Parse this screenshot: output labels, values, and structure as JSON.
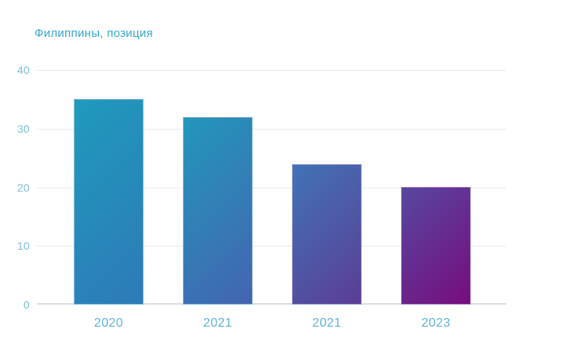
{
  "chart_data": {
    "type": "bar",
    "title": "Филиппины, позиция",
    "categories": [
      "2020",
      "2021",
      "2021",
      "2023"
    ],
    "values": [
      35,
      32,
      24,
      20
    ],
    "xlabel": "",
    "ylabel": "",
    "ylim": [
      0,
      40
    ],
    "yticks": [
      0,
      10,
      20,
      30,
      40
    ],
    "grid": "horizontal-only",
    "legend": "none",
    "bar_gradients": [
      [
        "#1f9abc",
        "#2e7ab8"
      ],
      [
        "#2297bb",
        "#4464b1"
      ],
      [
        "#4173b6",
        "#5b3d96"
      ],
      [
        "#5747a0",
        "#770d7d"
      ]
    ],
    "colors": {
      "title": "#35a8cf",
      "ytick_label": "#7cbeda",
      "xtick_label": "#5fb2d8",
      "gridline": "#e9e9eb",
      "baseline": "#dddde2",
      "background": "#ffffff"
    }
  }
}
